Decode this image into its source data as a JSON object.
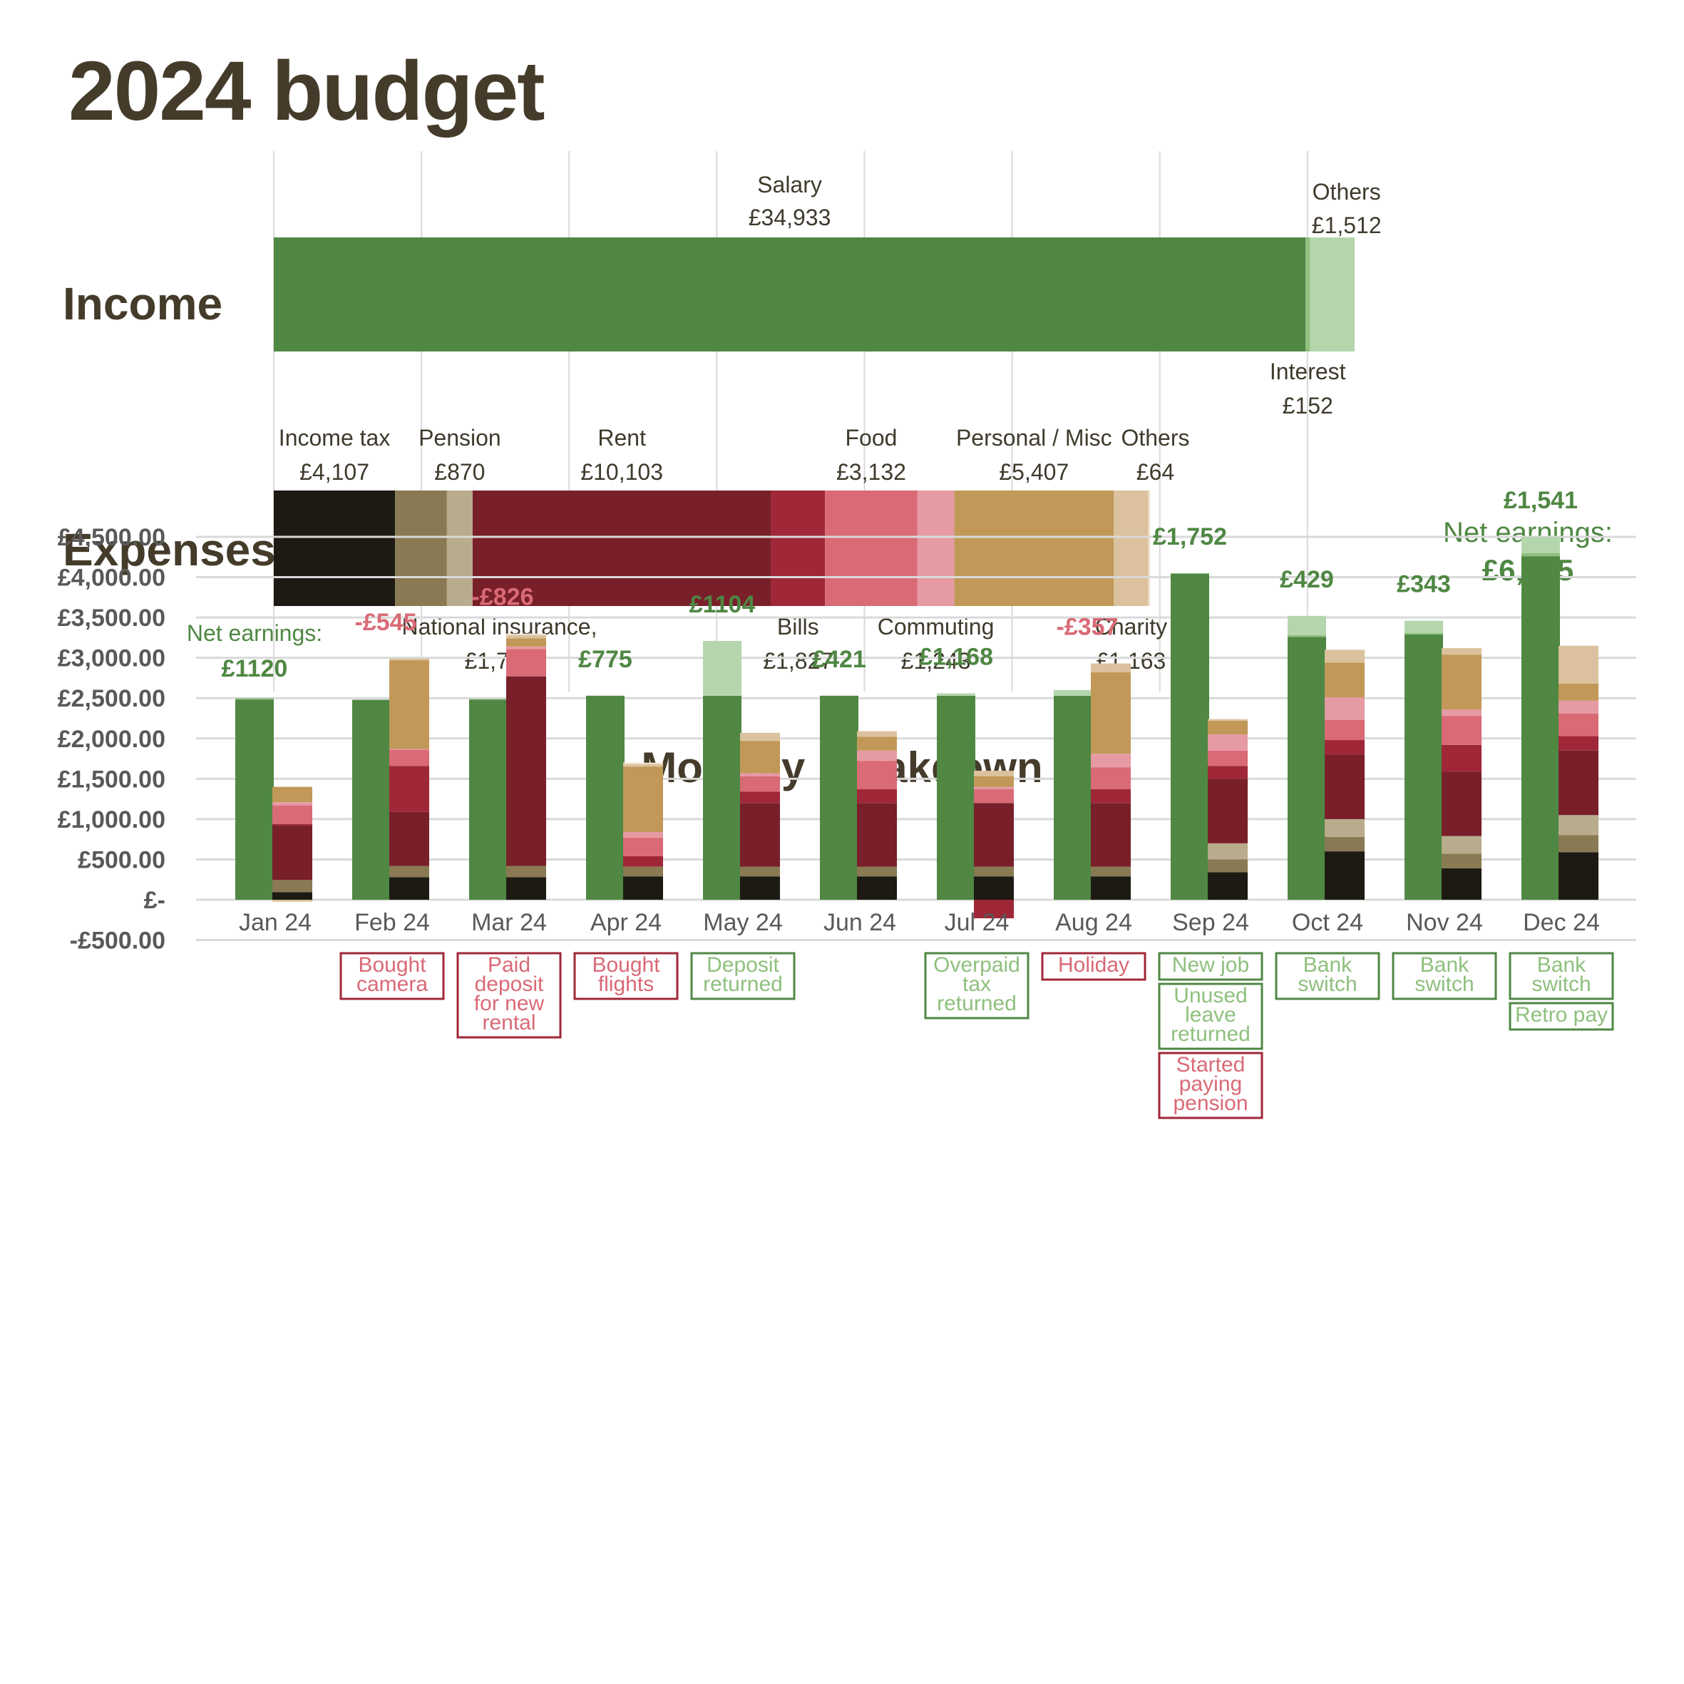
{
  "page": {
    "title": "2024 budget"
  },
  "colors": {
    "salary": "#4f8743",
    "interest": "#8fc07e",
    "income_others": "#b5d6ad",
    "income_tax": "#1c1a12",
    "national_insurance": "#897a53",
    "pension": "#b9ac8c",
    "rent": "#781f29",
    "bills": "#a02738",
    "food": "#d96a76",
    "commuting": "#e69aa3",
    "personal_misc": "#c19858",
    "charity": "#dbc19d",
    "expense_others": "#efe3cc",
    "positive_text": "#4f8743",
    "negative_text": "#d96a76",
    "positive_note_text": "#8fc07e",
    "negative_note_border": "#a02738",
    "positive_note_border": "#4f8743",
    "grid": "#d9d9d9",
    "label_text": "#3f3a2c",
    "axis_text": "#595959"
  },
  "chart_data": [
    {
      "type": "bar",
      "orientation": "horizontal-stacked",
      "title": "2024 budget",
      "categories": [
        "Income",
        "Expenses"
      ],
      "xlim": [
        0,
        37000
      ],
      "grid": true,
      "income": [
        {
          "name": "Salary",
          "value": 34933,
          "label": "£34,933",
          "color_key": "salary",
          "label_pos": "above"
        },
        {
          "name": "Interest",
          "value": 152,
          "label": "£152",
          "color_key": "interest",
          "label_pos": "below"
        },
        {
          "name": "Others",
          "value": 1512,
          "label": "£1,512",
          "color_key": "income_others",
          "label_pos": "above"
        }
      ],
      "expenses": [
        {
          "name": "Income tax",
          "value": 4107,
          "label": "£4,107",
          "color_key": "income_tax",
          "label_pos": "above"
        },
        {
          "name": "National insurance,",
          "value": 1756,
          "label": "£1,756",
          "color_key": "national_insurance",
          "label_pos": "below"
        },
        {
          "name": "Pension",
          "value": 870,
          "label": "£870",
          "color_key": "pension",
          "label_pos": "above"
        },
        {
          "name": "Rent",
          "value": 10103,
          "label": "£10,103",
          "color_key": "rent",
          "label_pos": "above"
        },
        {
          "name": "Bills",
          "value": 1827,
          "label": "£1,827",
          "color_key": "bills",
          "label_pos": "below"
        },
        {
          "name": "Food",
          "value": 3132,
          "label": "£3,132",
          "color_key": "food",
          "label_pos": "above"
        },
        {
          "name": "Commuting",
          "value": 1243,
          "label": "£1,243",
          "color_key": "commuting",
          "label_pos": "below"
        },
        {
          "name": "Personal / Misc",
          "value": 5407,
          "label": "£5,407",
          "color_key": "personal_misc",
          "label_pos": "above"
        },
        {
          "name": "Charity",
          "value": 1163,
          "label": "£1,163",
          "color_key": "charity",
          "label_pos": "below"
        },
        {
          "name": "Others",
          "value": 64,
          "label": "£64",
          "color_key": "expense_others",
          "label_pos": "above"
        }
      ],
      "net_earnings": {
        "label": "Net earnings:",
        "value": "£6,925"
      }
    },
    {
      "type": "bar",
      "orientation": "vertical-stacked-grouped",
      "title": "Monthly breakdown",
      "ylim": [
        -500,
        4500
      ],
      "yticks": [
        4500,
        4000,
        3500,
        3000,
        2500,
        2000,
        1500,
        1000,
        500,
        0,
        -500
      ],
      "ytick_labels": [
        "£4,500.00",
        "£4,000.00",
        "£3,500.00",
        "£3,000.00",
        "£2,500.00",
        "£2,000.00",
        "£1,500.00",
        "£1,000.00",
        "£500.00",
        "£-",
        "-£500.00"
      ],
      "grid": true,
      "categories": [
        "Jan 24",
        "Feb 24",
        "Mar 24",
        "Apr 24",
        "May 24",
        "Jun 24",
        "Jul 24",
        "Aug 24",
        "Sep 24",
        "Oct 24",
        "Nov 24",
        "Dec 24"
      ],
      "income_series": [
        {
          "name": "Salary",
          "color_key": "salary",
          "values": [
            2480,
            2480,
            2480,
            2530,
            2530,
            2530,
            2530,
            2530,
            4040,
            3260,
            3290,
            4260
          ]
        },
        {
          "name": "Interest",
          "color_key": "interest",
          "values": [
            20,
            0,
            10,
            0,
            0,
            0,
            0,
            0,
            10,
            20,
            20,
            40
          ]
        },
        {
          "name": "Others",
          "color_key": "income_others",
          "values": [
            0,
            0,
            0,
            0,
            680,
            0,
            30,
            70,
            0,
            240,
            150,
            200
          ]
        }
      ],
      "expense_series": [
        {
          "name": "Income tax",
          "color_key": "income_tax",
          "values": [
            95,
            280,
            280,
            290,
            290,
            290,
            290,
            290,
            340,
            600,
            390,
            590
          ]
        },
        {
          "name": "National insurance",
          "color_key": "national_insurance",
          "values": [
            150,
            140,
            140,
            120,
            120,
            120,
            120,
            120,
            160,
            180,
            180,
            210
          ]
        },
        {
          "name": "Pension",
          "color_key": "pension",
          "values": [
            0,
            0,
            0,
            0,
            0,
            0,
            0,
            0,
            200,
            220,
            220,
            250
          ]
        },
        {
          "name": "Rent",
          "color_key": "rent",
          "values": [
            680,
            670,
            2350,
            0,
            790,
            790,
            790,
            790,
            800,
            800,
            800,
            800
          ]
        },
        {
          "name": "Bills",
          "color_key": "bills",
          "values": [
            15,
            570,
            0,
            130,
            140,
            170,
            -230,
            170,
            160,
            180,
            330,
            180
          ]
        },
        {
          "name": "Food",
          "color_key": "food",
          "values": [
            230,
            200,
            340,
            230,
            190,
            350,
            170,
            270,
            190,
            250,
            360,
            280
          ]
        },
        {
          "name": "Commuting",
          "color_key": "commuting",
          "values": [
            40,
            10,
            30,
            70,
            40,
            130,
            30,
            170,
            200,
            280,
            80,
            160
          ]
        },
        {
          "name": "Personal / Misc",
          "color_key": "personal_misc",
          "values": [
            190,
            1100,
            100,
            810,
            400,
            170,
            130,
            1010,
            170,
            430,
            680,
            210
          ]
        },
        {
          "name": "Charity",
          "color_key": "charity",
          "values": [
            -25,
            20,
            40,
            30,
            100,
            70,
            70,
            110,
            20,
            160,
            80,
            470
          ]
        },
        {
          "name": "Others",
          "color_key": "expense_others",
          "values": [
            0,
            0,
            20,
            20,
            0,
            0,
            0,
            0,
            0,
            0,
            0,
            0
          ]
        }
      ],
      "net_labels": [
        "£1120",
        "-£545",
        "-£826",
        "£775",
        "£1104",
        "£421",
        "£1,168",
        "-£357",
        "£1,752",
        "£429",
        "£343",
        "£1,541"
      ],
      "net_signs": [
        "positive",
        "negative",
        "negative",
        "positive",
        "positive",
        "positive",
        "positive",
        "negative",
        "positive",
        "positive",
        "positive",
        "positive"
      ],
      "first_net_prefix": "Net earnings:",
      "notes": [
        [],
        [
          {
            "text": "Bought camera",
            "kind": "negative",
            "lines": [
              "Bought",
              "camera"
            ]
          }
        ],
        [
          {
            "text": "Paid deposit for new rental",
            "kind": "negative",
            "lines": [
              "Paid",
              "deposit",
              "for new",
              "rental"
            ]
          }
        ],
        [
          {
            "text": "Bought flights",
            "kind": "negative",
            "lines": [
              "Bought",
              "flights"
            ]
          }
        ],
        [
          {
            "text": "Deposit returned",
            "kind": "positive",
            "lines": [
              "Deposit",
              "returned"
            ]
          }
        ],
        [],
        [
          {
            "text": "Overpaid tax returned",
            "kind": "positive",
            "lines": [
              "Overpaid",
              "tax",
              "returned"
            ]
          }
        ],
        [
          {
            "text": "Holiday",
            "kind": "negative",
            "lines": [
              "Holiday"
            ]
          }
        ],
        [
          {
            "text": "New job",
            "kind": "positive",
            "lines": [
              "New job"
            ]
          },
          {
            "text": "Unused leave returned",
            "kind": "positive",
            "lines": [
              "Unused",
              "leave",
              "returned"
            ]
          },
          {
            "text": "Started paying pension",
            "kind": "negative",
            "lines": [
              "Started",
              "paying",
              "pension"
            ]
          }
        ],
        [
          {
            "text": "Bank switch",
            "kind": "positive",
            "lines": [
              "Bank",
              "switch"
            ]
          }
        ],
        [
          {
            "text": "Bank switch",
            "kind": "positive",
            "lines": [
              "Bank",
              "switch"
            ]
          }
        ],
        [
          {
            "text": "Bank switch",
            "kind": "positive",
            "lines": [
              "Bank",
              "switch"
            ]
          },
          {
            "text": "Retro pay",
            "kind": "positive",
            "lines": [
              "Retro pay"
            ]
          }
        ]
      ]
    }
  ]
}
